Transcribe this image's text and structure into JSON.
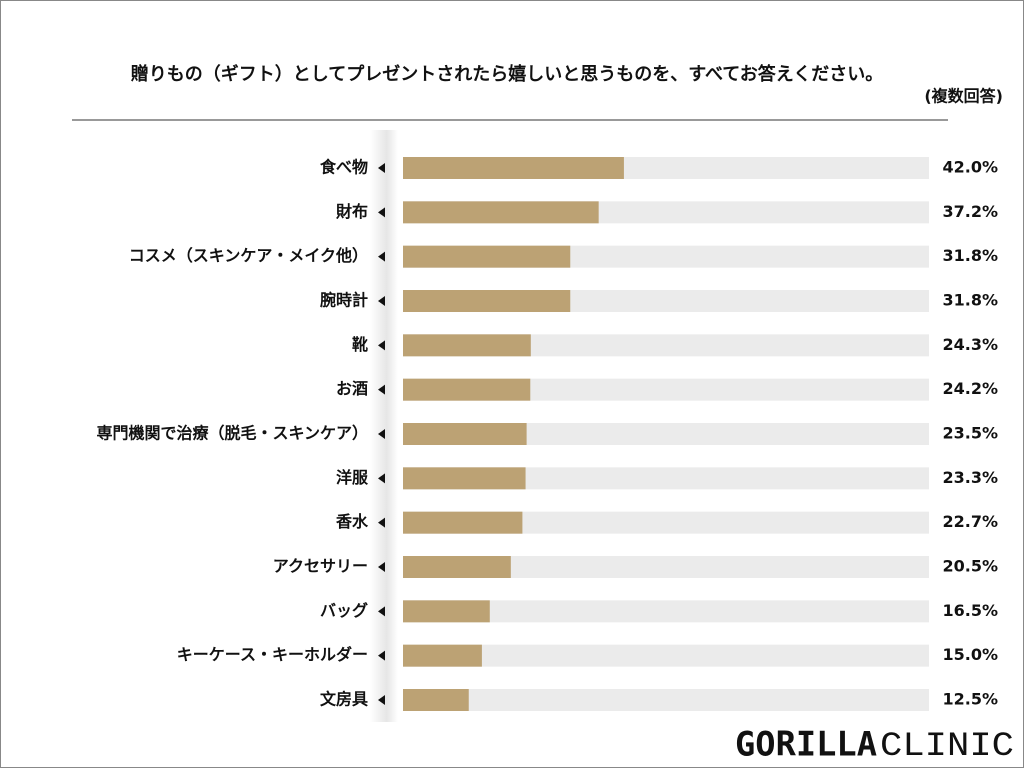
{
  "chart_data": {
    "type": "bar",
    "orientation": "horizontal",
    "title": "贈りもの（ギフト）としてプレゼントされたら嬉しいと思うものを、すべてお答えください。",
    "subtitle": "(複数回答)",
    "categories": [
      "食べ物",
      "財布",
      "コスメ（スキンケア・メイク他）",
      "腕時計",
      "靴",
      "お酒",
      "専門機関で治療（脱毛・スキンケア）",
      "洋服",
      "香水",
      "アクセサリー",
      "バッグ",
      "キーケース・キーホルダー",
      "文房具"
    ],
    "values": [
      42.0,
      37.2,
      31.8,
      31.8,
      24.3,
      24.2,
      23.5,
      23.3,
      22.7,
      20.5,
      16.5,
      15.0,
      12.5
    ],
    "value_labels": [
      "42.0%",
      "37.2%",
      "31.8%",
      "31.8%",
      "24.3%",
      "24.2%",
      "23.5%",
      "23.3%",
      "22.7%",
      "20.5%",
      "16.5%",
      "15.0%",
      "12.5%"
    ],
    "color": "#bca274",
    "track_color": "#ebebeb",
    "xlim": [
      0,
      100
    ],
    "logo": {
      "bold": "GORILLA",
      "light": "CLINIC"
    }
  }
}
